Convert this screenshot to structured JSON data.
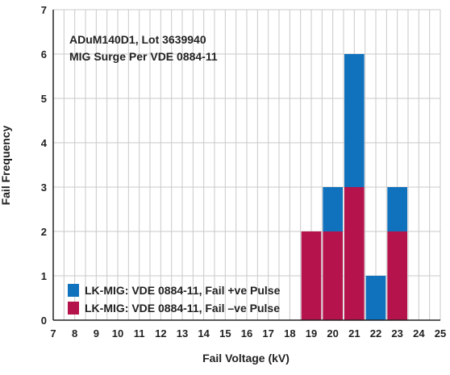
{
  "chart_data": {
    "type": "bar",
    "stacked": true,
    "annotation": [
      "ADuM140D1, Lot 3639940",
      "MIG Surge Per VDE 0884-11"
    ],
    "xlabel": "Fail Voltage (kV)",
    "ylabel": "Fail Frequency",
    "xlim": [
      7,
      25
    ],
    "ylim": [
      0,
      7
    ],
    "xticks": [
      7,
      8,
      9,
      10,
      11,
      12,
      13,
      14,
      15,
      16,
      17,
      18,
      19,
      20,
      21,
      22,
      23,
      24,
      25
    ],
    "yticks": [
      0,
      1,
      2,
      3,
      4,
      5,
      6,
      7
    ],
    "grid": true,
    "legend_position": "bottom-left",
    "x": [
      19,
      20,
      21,
      22,
      23
    ],
    "series": [
      {
        "name": "LK-MIG: VDE 0884-11, Fail –ve Pulse",
        "color": "#b5134b",
        "values": [
          2,
          2,
          3,
          0,
          2
        ]
      },
      {
        "name": "LK-MIG: VDE 0884-11, Fail +ve Pulse",
        "color": "#1072bd",
        "values": [
          0,
          1,
          3,
          1,
          1
        ]
      }
    ],
    "legend_order": [
      1,
      0
    ]
  }
}
